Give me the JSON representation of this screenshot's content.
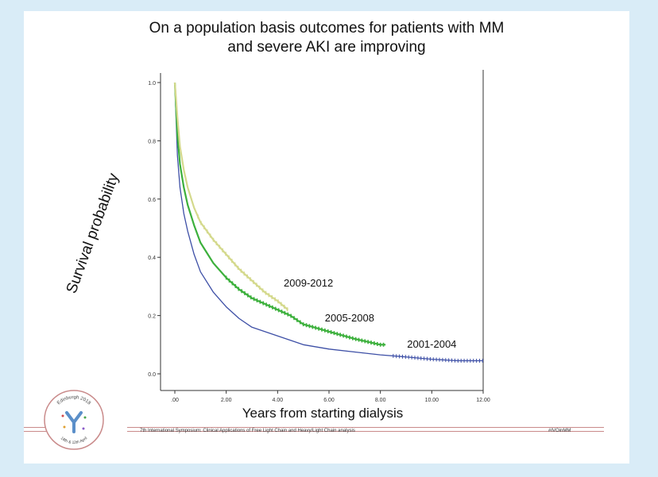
{
  "slide": {
    "title_line1": "On a population basis outcomes for patients with MM",
    "title_line2": "and severe AKI are improving",
    "footer_text": "7th International Symposium: Clinical Applications of Free Light Chain and Heavy/Light Chain analysis",
    "footer_hashtag": "#IVOinMM",
    "logo_text_top": "Edinburgh 2018",
    "logo_text_bottom": "18th & 12th April"
  },
  "chart_data": {
    "type": "line",
    "title": "On a population basis outcomes for patients with MM and severe AKI are improving",
    "xlabel": "Years from starting dialysis",
    "ylabel": "Survival probability",
    "xlim": [
      0,
      12
    ],
    "ylim": [
      0,
      1
    ],
    "x_ticks": [
      0,
      2,
      4,
      6,
      8,
      10,
      12
    ],
    "x_tick_labels": [
      ".00",
      "2.00",
      "4.00",
      "6.00",
      "8.00",
      "10.00",
      "12.00"
    ],
    "y_ticks": [
      0,
      0.2,
      0.4,
      0.6,
      0.8,
      1.0
    ],
    "y_tick_labels": [
      "0.0",
      "0.2",
      "0.4",
      "0.6",
      "0.8",
      "1.0"
    ],
    "grid": false,
    "series": [
      {
        "name": "2009-2012",
        "color": "#d4d98c",
        "x": [
          0,
          0.1,
          0.2,
          0.35,
          0.5,
          0.75,
          1.0,
          1.25,
          1.5,
          2.0,
          2.5,
          3.0,
          3.5,
          4.0,
          4.4
        ],
        "y": [
          1.0,
          0.88,
          0.78,
          0.7,
          0.64,
          0.57,
          0.52,
          0.49,
          0.46,
          0.41,
          0.36,
          0.32,
          0.28,
          0.25,
          0.22
        ]
      },
      {
        "name": "2005-2008",
        "color": "#3cb03c",
        "x": [
          0,
          0.1,
          0.2,
          0.35,
          0.5,
          0.75,
          1.0,
          1.5,
          2.0,
          2.5,
          3.0,
          3.5,
          4.0,
          4.5,
          5.0,
          6.0,
          7.0,
          8.0,
          8.2
        ],
        "y": [
          1.0,
          0.82,
          0.72,
          0.64,
          0.58,
          0.51,
          0.45,
          0.38,
          0.33,
          0.29,
          0.26,
          0.24,
          0.22,
          0.2,
          0.17,
          0.145,
          0.12,
          0.1,
          0.1
        ]
      },
      {
        "name": "2001-2004",
        "color": "#3d4fa6",
        "x": [
          0,
          0.1,
          0.2,
          0.35,
          0.5,
          0.75,
          1.0,
          1.5,
          2.0,
          2.5,
          3.0,
          4.0,
          5.0,
          6.0,
          7.0,
          8.0,
          9.0,
          10.0,
          11.0,
          12.0
        ],
        "y": [
          1.0,
          0.75,
          0.64,
          0.55,
          0.49,
          0.41,
          0.35,
          0.28,
          0.23,
          0.19,
          0.16,
          0.13,
          0.1,
          0.085,
          0.075,
          0.065,
          0.058,
          0.05,
          0.045,
          0.045
        ]
      }
    ],
    "annotations": [
      {
        "text": "2009-2012",
        "x": 5.2,
        "y": 0.3
      },
      {
        "text": "2005-2008",
        "x": 6.8,
        "y": 0.18
      },
      {
        "text": "2001-2004",
        "x": 10.0,
        "y": 0.09
      }
    ]
  }
}
